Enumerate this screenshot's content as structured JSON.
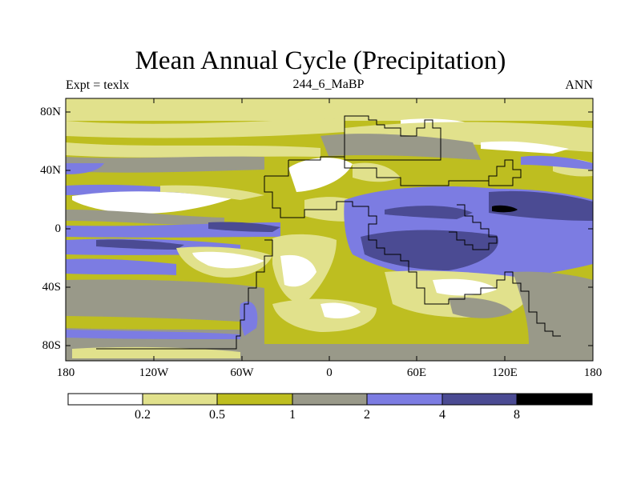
{
  "title": "Mean Annual Cycle (Precipitation)",
  "left_label": "Expt = texlx",
  "center_label": "244_6_MaBP",
  "right_label": "ANN",
  "lat_ticks": [
    "80N",
    "40N",
    "0",
    "40S",
    "80S"
  ],
  "lon_ticks": [
    "180",
    "120W",
    "60W",
    "0",
    "60E",
    "120E",
    "180"
  ],
  "colorbar": {
    "levels": [
      "0.2",
      "0.5",
      "1",
      "2",
      "4",
      "8"
    ],
    "colors": [
      "#ffffff",
      "#e1e18c",
      "#bebe20",
      "#999989",
      "#7c7ce2",
      "#4b4b93",
      "#000000"
    ]
  },
  "colors": {
    "c0": "#ffffff",
    "c1": "#e1e18c",
    "c2": "#bebe20",
    "c3": "#999989",
    "c4": "#7c7ce2",
    "c5": "#4b4b93",
    "c6": "#000000"
  }
}
